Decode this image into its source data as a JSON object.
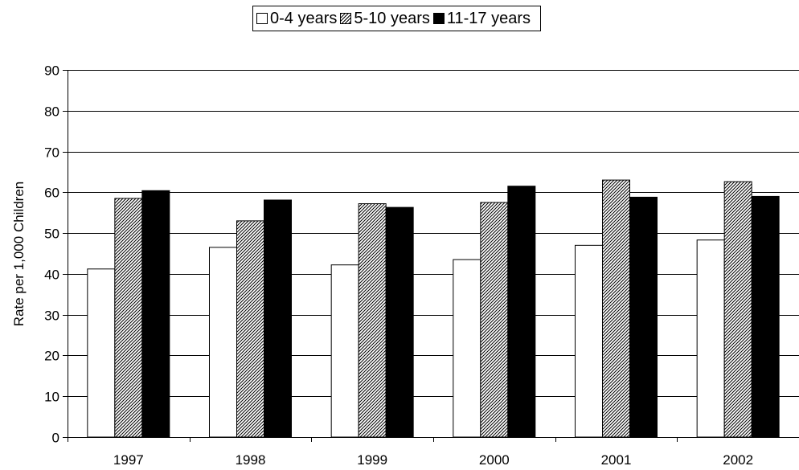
{
  "chart_data": {
    "type": "bar",
    "categories": [
      "1997",
      "1998",
      "1999",
      "2000",
      "2001",
      "2002"
    ],
    "series": [
      {
        "name": "0-4 years",
        "values": [
          41.2,
          46.5,
          42.2,
          43.5,
          47.0,
          48.3
        ],
        "color": "#ffffff",
        "pattern": "solid"
      },
      {
        "name": "5-10 years",
        "values": [
          58.5,
          53.0,
          57.2,
          57.5,
          63.0,
          62.6
        ],
        "color": "#808080",
        "pattern": "hatched"
      },
      {
        "name": "11-17 years",
        "values": [
          60.4,
          58.1,
          56.3,
          61.5,
          58.8,
          59.0
        ],
        "color": "#000000",
        "pattern": "solid"
      }
    ],
    "title": "",
    "xlabel": "",
    "ylabel": "Rate per 1,000 Children",
    "ylim": [
      0,
      90
    ],
    "yticks": [
      "0",
      "10",
      "20",
      "30",
      "40",
      "50",
      "60",
      "70",
      "80",
      "90"
    ],
    "grid": true,
    "legend_position": "top-center"
  }
}
